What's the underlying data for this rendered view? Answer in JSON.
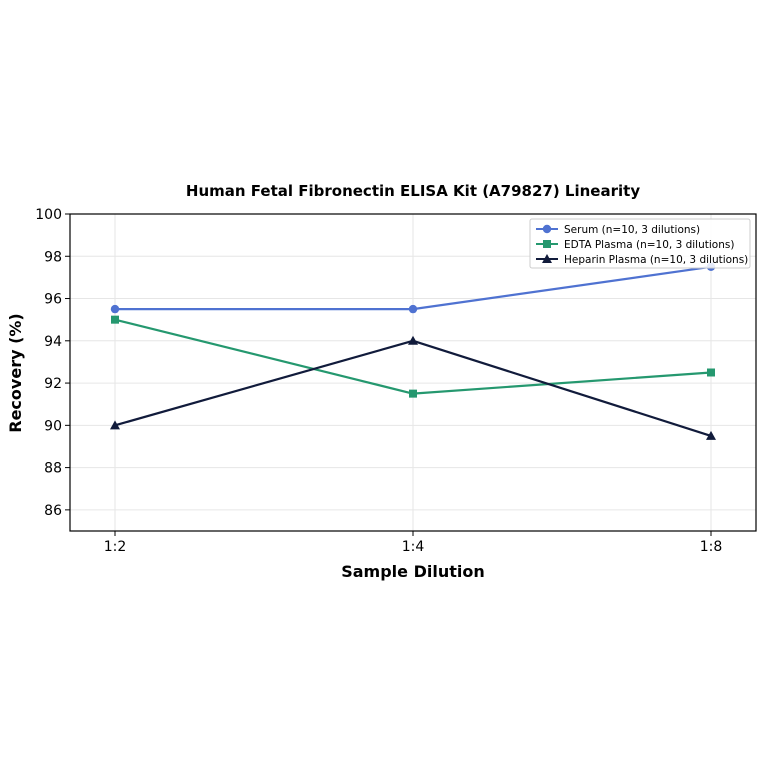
{
  "chart_data": {
    "type": "line",
    "title": "Human Fetal Fibronectin ELISA Kit (A79827) Linearity",
    "xlabel": "Sample Dilution",
    "ylabel": "Recovery (%)",
    "categories": [
      "1:2",
      "1:4",
      "1:8"
    ],
    "ylim": [
      85,
      100
    ],
    "yticks": [
      86,
      88,
      90,
      92,
      94,
      96,
      98,
      100
    ],
    "grid": true,
    "legend_position": "top-right",
    "series": [
      {
        "name": "Serum (n=10, 3 dilutions)",
        "values": [
          95.5,
          95.5,
          97.5
        ],
        "color": "#4f72d1",
        "marker": "circle"
      },
      {
        "name": "EDTA Plasma (n=10, 3 dilutions)",
        "values": [
          95.0,
          91.5,
          92.5
        ],
        "color": "#25986f",
        "marker": "square"
      },
      {
        "name": "Heparin Plasma (n=10, 3 dilutions)",
        "values": [
          90.0,
          94.0,
          89.5
        ],
        "color": "#111b3b",
        "marker": "triangle"
      }
    ]
  }
}
